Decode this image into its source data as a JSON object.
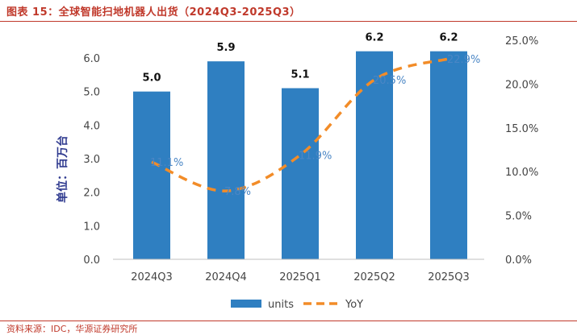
{
  "header": {
    "title": "图表 15：全球智能扫地机器人出货（2024Q3-2025Q3）"
  },
  "footer": {
    "source": "资料来源：IDC，华源证券研究所"
  },
  "colors": {
    "bar": "#2f7fc1",
    "yoy_line": "#f28c28",
    "yoy_label": "#4a86c5",
    "y_title": "#2f3a8f",
    "accent": "#c0392b"
  },
  "chart_data": {
    "type": "bar",
    "title": "",
    "ylabel": "单位：百万台",
    "categories": [
      "2024Q3",
      "2024Q4",
      "2025Q1",
      "2025Q2",
      "2025Q3"
    ],
    "series": [
      {
        "name": "units",
        "type": "bar",
        "axis": "left",
        "values": [
          5.0,
          5.9,
          5.1,
          6.2,
          6.2
        ],
        "labels": [
          "5.0",
          "5.9",
          "5.1",
          "6.2",
          "6.2"
        ]
      },
      {
        "name": "YoY",
        "type": "line",
        "style": "dashed",
        "axis": "right",
        "values": [
          11.1,
          7.8,
          11.9,
          20.5,
          22.9
        ],
        "labels": [
          "11.1%",
          "7.8%",
          "11.9%",
          "20.5%",
          "22.9%"
        ]
      }
    ],
    "ylim": [
      0,
      6.5
    ],
    "y_ticks": [
      "0.0",
      "1.0",
      "2.0",
      "3.0",
      "4.0",
      "5.0",
      "6.0"
    ],
    "y2lim": [
      0,
      25
    ],
    "y2_ticks": [
      "0.0%",
      "5.0%",
      "10.0%",
      "15.0%",
      "20.0%",
      "25.0%"
    ],
    "grid": false,
    "legend_position": "bottom"
  }
}
